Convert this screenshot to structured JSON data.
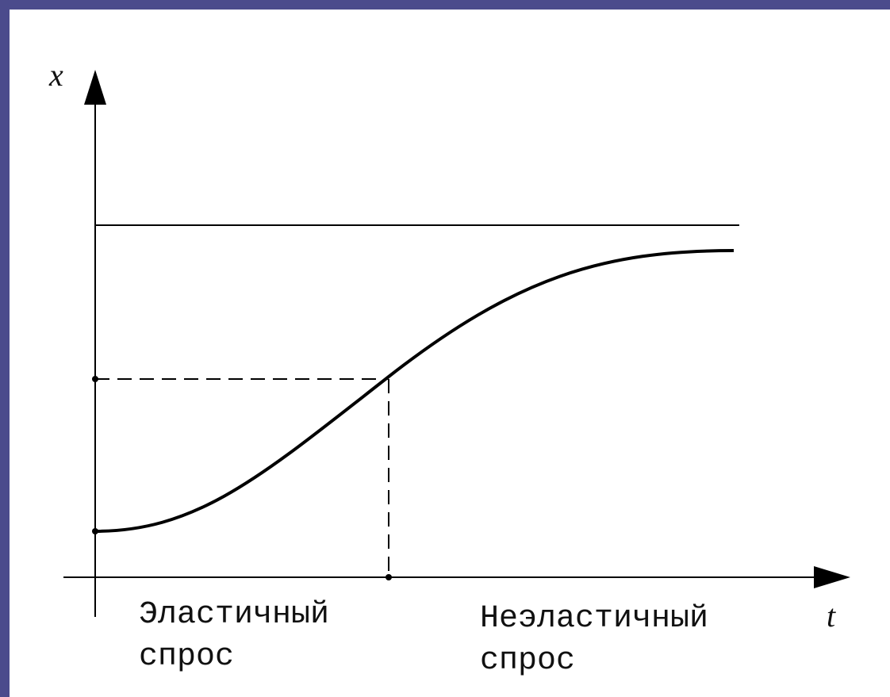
{
  "axes": {
    "y_label": "x",
    "x_label": "t"
  },
  "regions": [
    {
      "label_lines": [
        "Эластичный",
        "спрос"
      ]
    },
    {
      "label_lines": [
        "Неэластичный",
        "спрос"
      ]
    }
  ]
}
